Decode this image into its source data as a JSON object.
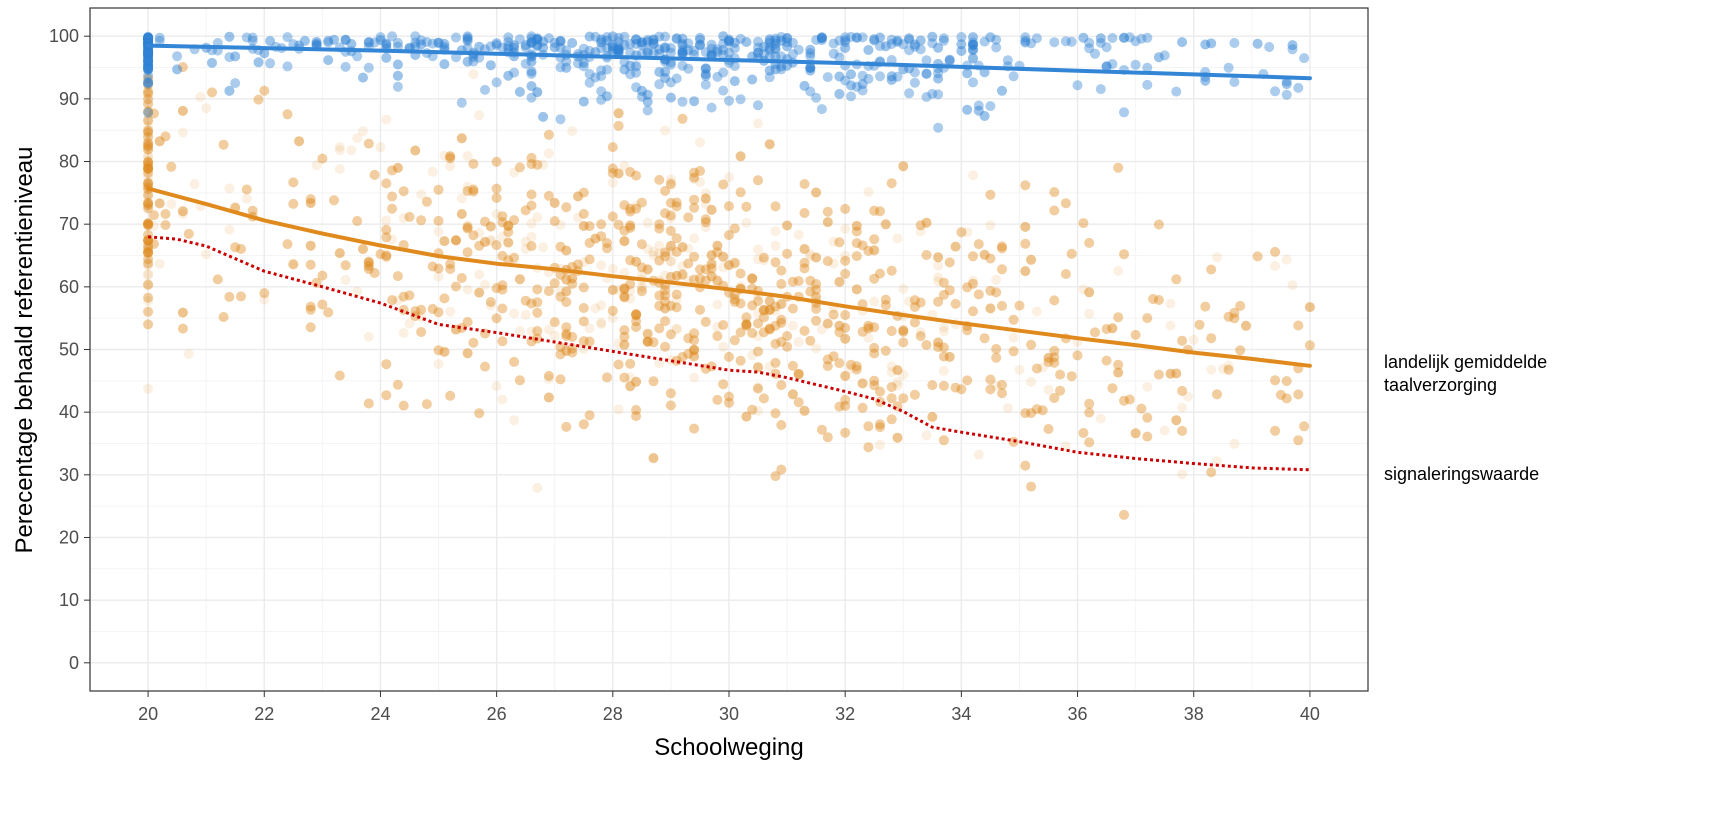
{
  "chart_data": {
    "type": "scatter",
    "title": "",
    "xlabel": "Schoolweging",
    "ylabel": "Perecentage behaald referentieniveau",
    "xlim": [
      19,
      41
    ],
    "ylim": [
      -4.5,
      104.5
    ],
    "x_ticks": [
      20,
      22,
      24,
      26,
      28,
      30,
      32,
      34,
      36,
      38,
      40
    ],
    "y_ticks": [
      0,
      10,
      20,
      30,
      40,
      50,
      60,
      70,
      80,
      90,
      100
    ],
    "grid": true,
    "legend": "none",
    "colors": {
      "blue": "#3385d6",
      "orange": "#e08a1e",
      "red": "#cc0000",
      "grid_major": "#ebebeb",
      "grid_minor": "#f4f4f4",
      "panel_border": "#333333",
      "tick_text": "#4d4d4d"
    },
    "series": [
      {
        "kind": "smooth-line",
        "color": "#3385d6",
        "x": [
          20,
          22,
          24,
          26,
          28,
          30,
          32,
          34,
          36,
          38,
          40
        ],
        "y": [
          98.5,
          98.1,
          97.7,
          97.2,
          96.7,
          96.2,
          95.7,
          95.1,
          94.5,
          93.9,
          93.3
        ]
      },
      {
        "kind": "smooth-line",
        "color": "#e08a1e",
        "x": [
          20,
          21,
          22,
          23,
          24,
          25,
          26,
          27,
          28,
          29,
          30,
          31,
          32,
          33,
          34,
          35,
          36,
          37,
          38,
          39,
          40
        ],
        "y": [
          75.7,
          73.2,
          70.6,
          68.5,
          66.6,
          64.9,
          63.7,
          62.8,
          61.7,
          60.7,
          59.6,
          58.4,
          56.9,
          55.5,
          54.2,
          53.0,
          51.8,
          50.7,
          49.5,
          48.5,
          47.4
        ]
      },
      {
        "kind": "dotted-line",
        "color": "#cc0000",
        "x": [
          20,
          20.5,
          21,
          22,
          23,
          24,
          25,
          26,
          27,
          28,
          29,
          30,
          30.5,
          31,
          32,
          32.5,
          33,
          33.5,
          34,
          35,
          36,
          37,
          38,
          39,
          40
        ],
        "y": [
          68.0,
          67.6,
          66.5,
          62.5,
          60.0,
          57.4,
          54.0,
          52.7,
          51.2,
          49.7,
          48.2,
          46.7,
          46.4,
          45.5,
          43.3,
          42.1,
          40.1,
          37.6,
          36.8,
          35.3,
          33.6,
          32.6,
          31.8,
          31.1,
          30.8
        ]
      }
    ],
    "annotations": [
      {
        "text": "landelijk gemiddelde",
        "y": 49.5
      },
      {
        "text": "taalverzorging",
        "y": 45.5
      },
      {
        "text": "signaleringswaarde",
        "y": 30.3
      }
    ]
  }
}
